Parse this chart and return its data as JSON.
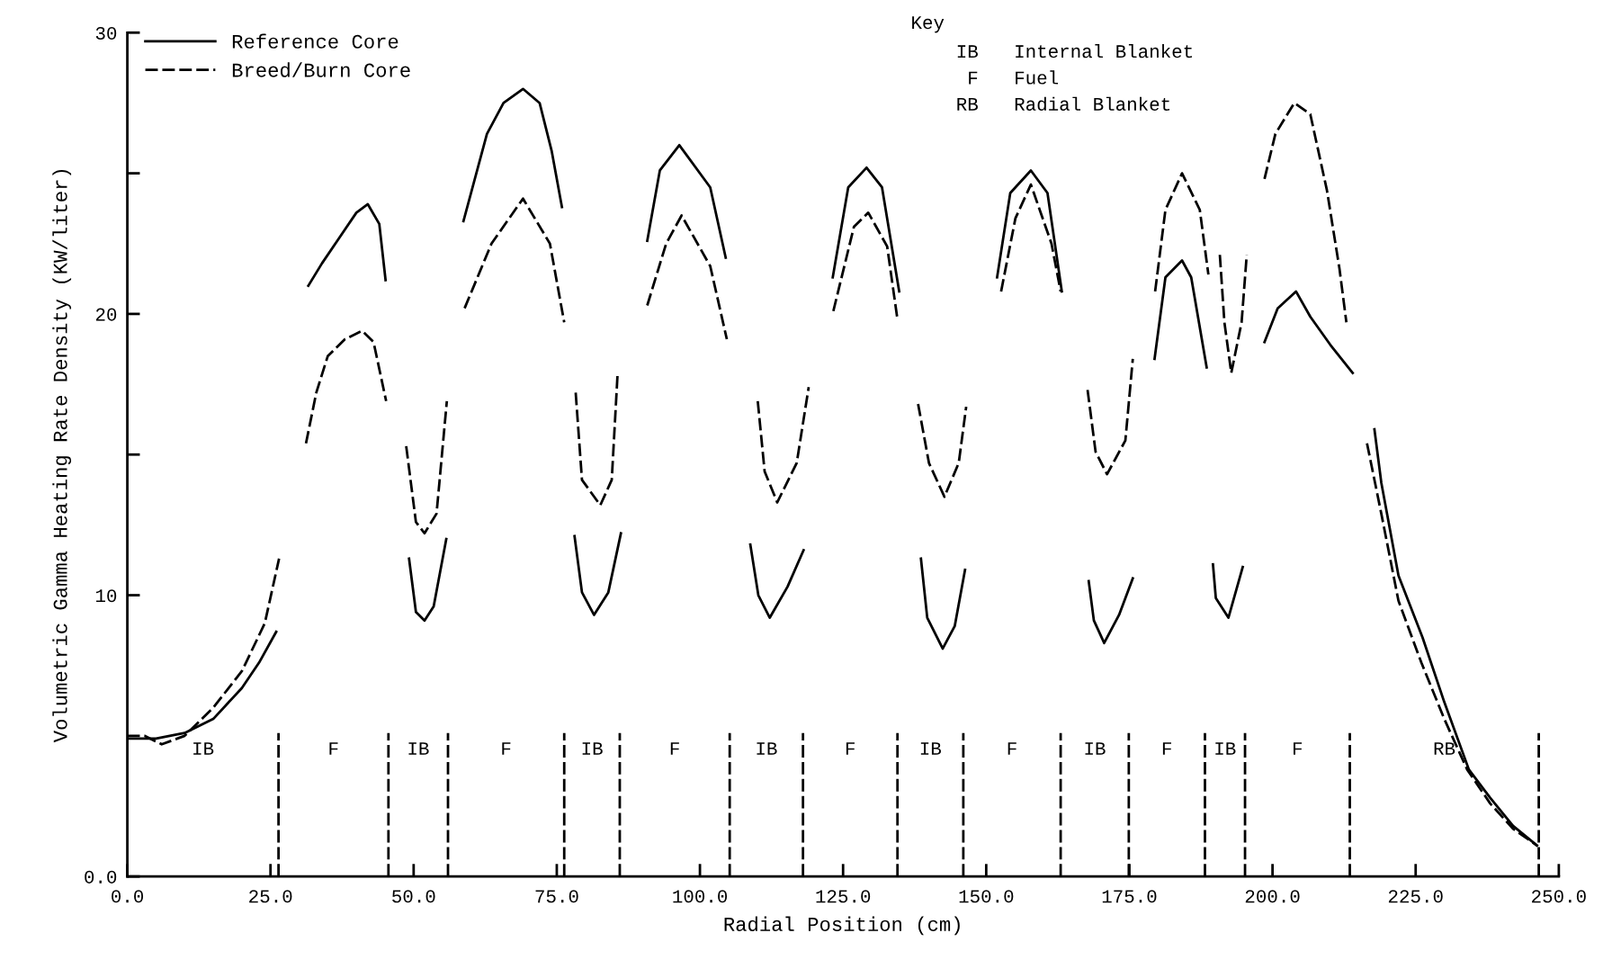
{
  "chart_data": {
    "type": "line",
    "xlabel": "Radial Position (cm)",
    "ylabel": "Volumetric Gamma Heating Rate Density (KW/liter)",
    "xlim": [
      0,
      250
    ],
    "xticks": [
      {
        "value": 0,
        "label": "0.0"
      },
      {
        "value": 25,
        "label": "25.0"
      },
      {
        "value": 50,
        "label": "50.0"
      },
      {
        "value": 75,
        "label": "75.0"
      },
      {
        "value": 100,
        "label": "100.0"
      },
      {
        "value": 125,
        "label": "125.0"
      },
      {
        "value": 150,
        "label": "150.0"
      },
      {
        "value": 175,
        "label": "175.0"
      },
      {
        "value": 200,
        "label": "200.0"
      },
      {
        "value": 225,
        "label": "225.0"
      },
      {
        "value": 250,
        "label": "250.0"
      }
    ],
    "ylim": [
      0,
      30
    ],
    "yticks": [
      {
        "value": 0,
        "label": "0.0"
      },
      10,
      {
        "value": 15,
        "label": null
      },
      20,
      {
        "value": 25,
        "label": null
      },
      30
    ],
    "grid": false,
    "legend": "top left",
    "marker": "none",
    "series": [
      {
        "name": "Reference Core",
        "color": "#000000",
        "line_style": "solid",
        "x": [
          0,
          5,
          10,
          15,
          20,
          23,
          26
        ],
        "values": [
          4.9,
          4.9,
          5.1,
          5.6,
          6.7,
          7.6,
          8.7
        ]
      },
      {
        "name": "Breed/Burn Core",
        "color": "#000000",
        "line_style": "dashed",
        "x": [
          0,
          3,
          6,
          10,
          15,
          20,
          24,
          26.5
        ],
        "values": [
          5.0,
          5.0,
          4.7,
          5.0,
          6.0,
          7.3,
          9.0,
          11.3
        ]
      },
      {
        "color": "#000000",
        "line_style": "solid",
        "x": [
          31.6,
          34,
          37,
          40,
          42,
          44,
          45.1
        ],
        "values": [
          21.0,
          21.8,
          22.7,
          23.6,
          23.9,
          23.2,
          21.2
        ]
      },
      {
        "color": "#000000",
        "line_style": "dashed",
        "x": [
          31.2,
          33,
          35,
          38,
          41,
          43,
          45.2
        ],
        "values": [
          15.4,
          17.2,
          18.5,
          19.1,
          19.4,
          19.0,
          16.9
        ]
      },
      {
        "color": "#000000",
        "line_style": "solid",
        "x": [
          49.2,
          50.4,
          51.9,
          53.5,
          55.7
        ],
        "values": [
          11.3,
          9.4,
          9.1,
          9.6,
          12.0
        ]
      },
      {
        "color": "#000000",
        "line_style": "dashed",
        "x": [
          48.7,
          50.4,
          51.9,
          54,
          55.8
        ],
        "values": [
          15.3,
          12.6,
          12.2,
          12.9,
          16.9
        ]
      },
      {
        "color": "#000000",
        "line_style": "solid",
        "x": [
          58.7,
          62.8,
          65.7,
          69.1,
          72.0,
          74.1,
          75.9
        ],
        "values": [
          23.3,
          26.4,
          27.5,
          28.0,
          27.5,
          25.8,
          23.8
        ]
      },
      {
        "color": "#000000",
        "line_style": "dashed",
        "x": [
          58.9,
          63.6,
          69.1,
          73.8,
          76.3
        ],
        "values": [
          20.2,
          22.5,
          24.1,
          22.5,
          19.7
        ]
      },
      {
        "color": "#000000",
        "line_style": "solid",
        "x": [
          78.1,
          79.4,
          81.5,
          84.0,
          86.2
        ],
        "values": [
          12.1,
          10.1,
          9.3,
          10.1,
          12.2
        ]
      },
      {
        "color": "#000000",
        "line_style": "dashed",
        "x": [
          78.3,
          79.4,
          82.6,
          84.6,
          85.6
        ],
        "values": [
          17.2,
          14.1,
          13.2,
          14.1,
          17.8
        ]
      },
      {
        "color": "#000000",
        "line_style": "solid",
        "x": [
          90.8,
          93.0,
          96.4,
          101.8,
          104.5
        ],
        "values": [
          22.6,
          25.1,
          26.0,
          24.5,
          22.0
        ]
      },
      {
        "color": "#000000",
        "line_style": "dashed",
        "x": [
          90.8,
          94.1,
          96.8,
          101.8,
          104.7
        ],
        "values": [
          20.3,
          22.5,
          23.5,
          21.7,
          19.1
        ]
      },
      {
        "color": "#000000",
        "line_style": "solid",
        "x": [
          108.8,
          110.2,
          112.2,
          115.3,
          118.1
        ],
        "values": [
          11.8,
          10.0,
          9.2,
          10.3,
          11.6
        ]
      },
      {
        "color": "#000000",
        "line_style": "dashed",
        "x": [
          110.1,
          111.3,
          113.5,
          116.9,
          119.0
        ],
        "values": [
          16.9,
          14.4,
          13.3,
          14.7,
          17.4
        ]
      },
      {
        "color": "#000000",
        "line_style": "solid",
        "x": [
          123.2,
          125.9,
          129.1,
          131.8,
          134.8
        ],
        "values": [
          21.3,
          24.5,
          25.2,
          24.5,
          20.8
        ]
      },
      {
        "color": "#000000",
        "line_style": "dashed",
        "x": [
          123.3,
          126.9,
          129.4,
          132.7,
          134.5
        ],
        "values": [
          20.1,
          23.1,
          23.6,
          22.4,
          19.8
        ]
      },
      {
        "color": "#000000",
        "line_style": "solid",
        "x": [
          138.6,
          139.7,
          142.4,
          144.5,
          146.3
        ],
        "values": [
          11.3,
          9.2,
          8.1,
          8.9,
          10.9
        ]
      },
      {
        "color": "#000000",
        "line_style": "dashed",
        "x": [
          138.1,
          140.0,
          142.7,
          145.2,
          146.5
        ],
        "values": [
          16.8,
          14.7,
          13.5,
          14.7,
          16.7
        ]
      },
      {
        "color": "#000000",
        "line_style": "solid",
        "x": [
          151.9,
          154.2,
          157.8,
          160.7,
          163.2
        ],
        "values": [
          21.3,
          24.3,
          25.1,
          24.3,
          20.8
        ]
      },
      {
        "color": "#000000",
        "line_style": "dashed",
        "x": [
          152.6,
          155.1,
          157.8,
          161.4,
          163.0
        ],
        "values": [
          20.8,
          23.4,
          24.6,
          22.5,
          20.8
        ]
      },
      {
        "color": "#000000",
        "line_style": "solid",
        "x": [
          167.9,
          168.8,
          170.6,
          173.2,
          175.6
        ],
        "values": [
          10.5,
          9.1,
          8.3,
          9.3,
          10.6
        ]
      },
      {
        "color": "#000000",
        "line_style": "dashed",
        "x": [
          167.7,
          169.1,
          171.1,
          174.3,
          175.6
        ],
        "values": [
          17.3,
          15.1,
          14.3,
          15.5,
          18.4
        ]
      },
      {
        "color": "#000000",
        "line_style": "solid",
        "x": [
          179.4,
          181.3,
          184.2,
          185.8,
          188.5
        ],
        "values": [
          18.4,
          21.3,
          21.9,
          21.3,
          18.1
        ]
      },
      {
        "color": "#000000",
        "line_style": "dashed",
        "x": [
          179.5,
          181.3,
          184.2,
          187.3,
          188.8
        ],
        "values": [
          20.8,
          23.7,
          25.0,
          23.7,
          21.4
        ]
      },
      {
        "color": "#000000",
        "line_style": "solid",
        "x": [
          189.6,
          190.1,
          192.3,
          194.8
        ],
        "values": [
          11.1,
          9.9,
          9.2,
          11.0
        ]
      },
      {
        "color": "#000000",
        "line_style": "dashed",
        "x": [
          190.8,
          191.6,
          192.8,
          194.6,
          195.5
        ],
        "values": [
          22.1,
          19.7,
          17.9,
          19.7,
          22.1
        ]
      },
      {
        "color": "#000000",
        "line_style": "solid",
        "x": [
          198.6,
          200.9,
          204.1,
          206.6,
          210.1,
          214.0
        ],
        "values": [
          19.0,
          20.2,
          20.8,
          19.9,
          18.9,
          17.9
        ]
      },
      {
        "color": "#000000",
        "line_style": "dashed",
        "x": [
          198.6,
          200.5,
          203.8,
          206.6,
          209.5,
          211.7,
          212.9
        ],
        "values": [
          24.8,
          26.4,
          27.5,
          27.1,
          24.4,
          21.6,
          19.7
        ]
      },
      {
        "color": "#000000",
        "line_style": "solid",
        "x": [
          217.8,
          219,
          222,
          226.2,
          230,
          234.3,
          238,
          242,
          246.2
        ],
        "values": [
          15.9,
          14.0,
          10.7,
          8.5,
          6.2,
          3.8,
          2.8,
          1.8,
          1.1
        ]
      },
      {
        "color": "#000000",
        "line_style": "dashed",
        "x": [
          216.5,
          219,
          222,
          226,
          230,
          234,
          238,
          242,
          246.2
        ],
        "values": [
          15.4,
          12.9,
          9.8,
          7.6,
          5.6,
          3.8,
          2.6,
          1.7,
          1.1
        ]
      }
    ],
    "ref_lines": [
      {
        "axis": "x",
        "value": 26.4,
        "line_style": "dashed"
      },
      {
        "axis": "x",
        "value": 45.6,
        "line_style": "dashed"
      },
      {
        "axis": "x",
        "value": 56.0,
        "line_style": "dashed"
      },
      {
        "axis": "x",
        "value": 76.3,
        "line_style": "dashed"
      },
      {
        "axis": "x",
        "value": 86.0,
        "line_style": "dashed"
      },
      {
        "axis": "x",
        "value": 105.2,
        "line_style": "dashed"
      },
      {
        "axis": "x",
        "value": 118.0,
        "line_style": "dashed"
      },
      {
        "axis": "x",
        "value": 134.5,
        "line_style": "dashed"
      },
      {
        "axis": "x",
        "value": 146.0,
        "line_style": "dashed"
      },
      {
        "axis": "x",
        "value": 163.0,
        "line_style": "dashed"
      },
      {
        "axis": "x",
        "value": 174.9,
        "line_style": "dashed"
      },
      {
        "axis": "x",
        "value": 188.2,
        "line_style": "dashed"
      },
      {
        "axis": "x",
        "value": 195.2,
        "line_style": "dashed"
      },
      {
        "axis": "x",
        "value": 213.5,
        "line_style": "dashed"
      },
      {
        "axis": "x",
        "value": 246.5,
        "line_style": "dashed"
      }
    ],
    "annotations": [
      "Key",
      "IB",
      "Internal Blanket",
      "F",
      "Fuel",
      "RB",
      "Radial Blanket",
      "IB",
      "F",
      "IB",
      "F",
      "IB",
      "F",
      "IB",
      "F",
      "IB",
      "F",
      "IB",
      "F",
      "IB",
      "F",
      "RB"
    ]
  }
}
